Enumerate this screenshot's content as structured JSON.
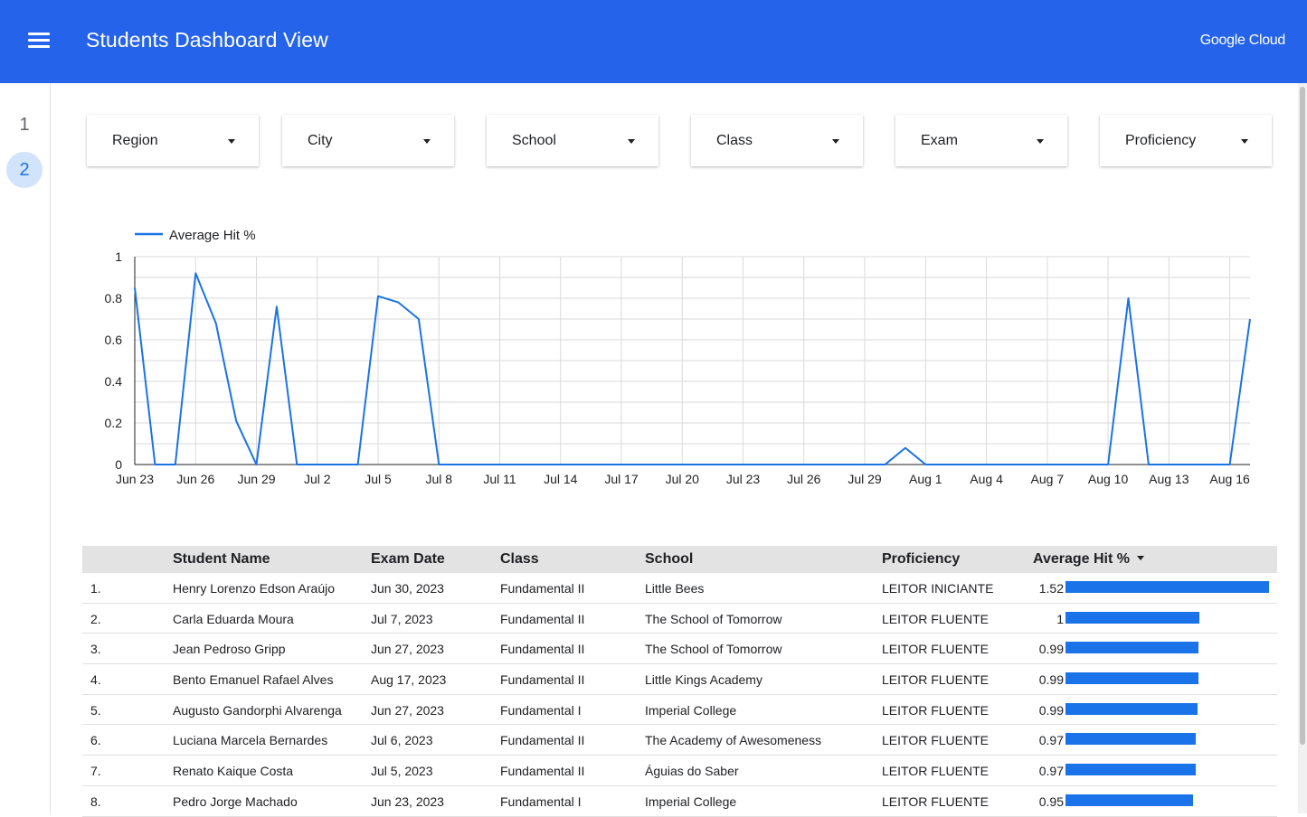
{
  "header": {
    "title": "Students Dashboard View",
    "brand": "Google Cloud",
    "menu_icon": "hamburger-menu-icon",
    "color": "#2563eb"
  },
  "pages": [
    {
      "label": "1",
      "active": false
    },
    {
      "label": "2",
      "active": true
    }
  ],
  "filters": [
    {
      "label": "Region"
    },
    {
      "label": "City"
    },
    {
      "label": "School"
    },
    {
      "label": "Class"
    },
    {
      "label": "Exam"
    },
    {
      "label": "Proficiency"
    }
  ],
  "chart_data": {
    "type": "line",
    "legend": "Average Hit %",
    "legend_position": "top-left",
    "grid": true,
    "series_color": "#1a73e8",
    "ylim": [
      0,
      1
    ],
    "y_ticks": [
      "0",
      "0.2",
      "0.4",
      "0.6",
      "0.8",
      "1"
    ],
    "x_ticks": [
      "Jun 23",
      "Jun 26",
      "Jun 29",
      "Jul 2",
      "Jul 5",
      "Jul 8",
      "Jul 11",
      "Jul 14",
      "Jul 17",
      "Jul 20",
      "Jul 23",
      "Jul 26",
      "Jul 29",
      "Aug 1",
      "Aug 4",
      "Aug 7",
      "Aug 10",
      "Aug 13",
      "Aug 16"
    ],
    "x_start": "2023-06-23",
    "x_end": "2023-08-17",
    "series": [
      {
        "name": "Average Hit %",
        "points": [
          {
            "x": "2023-06-23",
            "y": 0.85
          },
          {
            "x": "2023-06-24",
            "y": 0
          },
          {
            "x": "2023-06-25",
            "y": 0
          },
          {
            "x": "2023-06-26",
            "y": 0.92
          },
          {
            "x": "2023-06-27",
            "y": 0.68
          },
          {
            "x": "2023-06-28",
            "y": 0.21
          },
          {
            "x": "2023-06-29",
            "y": 0
          },
          {
            "x": "2023-06-30",
            "y": 0.76
          },
          {
            "x": "2023-07-01",
            "y": 0
          },
          {
            "x": "2023-07-02",
            "y": 0
          },
          {
            "x": "2023-07-03",
            "y": 0
          },
          {
            "x": "2023-07-04",
            "y": 0
          },
          {
            "x": "2023-07-05",
            "y": 0.81
          },
          {
            "x": "2023-07-06",
            "y": 0.78
          },
          {
            "x": "2023-07-07",
            "y": 0.7
          },
          {
            "x": "2023-07-08",
            "y": 0
          },
          {
            "x": "2023-07-09",
            "y": 0
          },
          {
            "x": "2023-07-10",
            "y": 0
          },
          {
            "x": "2023-07-11",
            "y": 0
          },
          {
            "x": "2023-07-12",
            "y": 0
          },
          {
            "x": "2023-07-13",
            "y": 0
          },
          {
            "x": "2023-07-14",
            "y": 0
          },
          {
            "x": "2023-07-15",
            "y": 0
          },
          {
            "x": "2023-07-16",
            "y": 0
          },
          {
            "x": "2023-07-17",
            "y": 0
          },
          {
            "x": "2023-07-18",
            "y": 0
          },
          {
            "x": "2023-07-19",
            "y": 0
          },
          {
            "x": "2023-07-20",
            "y": 0
          },
          {
            "x": "2023-07-21",
            "y": 0
          },
          {
            "x": "2023-07-22",
            "y": 0
          },
          {
            "x": "2023-07-23",
            "y": 0
          },
          {
            "x": "2023-07-24",
            "y": 0
          },
          {
            "x": "2023-07-25",
            "y": 0
          },
          {
            "x": "2023-07-26",
            "y": 0
          },
          {
            "x": "2023-07-27",
            "y": 0
          },
          {
            "x": "2023-07-28",
            "y": 0
          },
          {
            "x": "2023-07-29",
            "y": 0
          },
          {
            "x": "2023-07-30",
            "y": 0
          },
          {
            "x": "2023-07-31",
            "y": 0.08
          },
          {
            "x": "2023-08-01",
            "y": 0
          },
          {
            "x": "2023-08-02",
            "y": 0
          },
          {
            "x": "2023-08-03",
            "y": 0
          },
          {
            "x": "2023-08-04",
            "y": 0
          },
          {
            "x": "2023-08-05",
            "y": 0
          },
          {
            "x": "2023-08-06",
            "y": 0
          },
          {
            "x": "2023-08-07",
            "y": 0
          },
          {
            "x": "2023-08-08",
            "y": 0
          },
          {
            "x": "2023-08-09",
            "y": 0
          },
          {
            "x": "2023-08-10",
            "y": 0
          },
          {
            "x": "2023-08-11",
            "y": 0.8
          },
          {
            "x": "2023-08-12",
            "y": 0
          },
          {
            "x": "2023-08-13",
            "y": 0
          },
          {
            "x": "2023-08-14",
            "y": 0
          },
          {
            "x": "2023-08-15",
            "y": 0
          },
          {
            "x": "2023-08-16",
            "y": 0
          },
          {
            "x": "2023-08-17",
            "y": 0.7
          }
        ]
      }
    ]
  },
  "table": {
    "columns": {
      "name": "Student Name",
      "date": "Exam Date",
      "cls": "Class",
      "school": "School",
      "prof": "Proficiency",
      "hit": "Average Hit %"
    },
    "sort_icon": "sort-descending-icon",
    "bar_max": 1.52,
    "rows": [
      {
        "idx": "1.",
        "name": "Henry Lorenzo Edson Araújo",
        "date": "Jun 30, 2023",
        "cls": "Fundamental II",
        "school": "Little Bees",
        "prof": "LEITOR INICIANTE",
        "hit": "1.52",
        "hit_value": 1.52
      },
      {
        "idx": "2.",
        "name": "Carla Eduarda Moura",
        "date": "Jul 7, 2023",
        "cls": "Fundamental II",
        "school": "The School of Tomorrow",
        "prof": "LEITOR FLUENTE",
        "hit": "1",
        "hit_value": 1
      },
      {
        "idx": "3.",
        "name": "Jean Pedroso Gripp",
        "date": "Jun 27, 2023",
        "cls": "Fundamental II",
        "school": "The School of Tomorrow",
        "prof": "LEITOR FLUENTE",
        "hit": "0.99",
        "hit_value": 0.99
      },
      {
        "idx": "4.",
        "name": "Bento Emanuel Rafael Alves",
        "date": "Aug 17, 2023",
        "cls": "Fundamental II",
        "school": "Little Kings Academy",
        "prof": "LEITOR FLUENTE",
        "hit": "0.99",
        "hit_value": 0.99
      },
      {
        "idx": "5.",
        "name": "Augusto Gandorphi Alvarenga",
        "date": "Jun 27, 2023",
        "cls": "Fundamental I",
        "school": "Imperial College",
        "prof": "LEITOR FLUENTE",
        "hit": "0.99",
        "hit_value": 0.985
      },
      {
        "idx": "6.",
        "name": "Luciana Marcela Bernardes",
        "date": "Jul 6, 2023",
        "cls": "Fundamental II",
        "school": "The Academy of Awesomeness",
        "prof": "LEITOR FLUENTE",
        "hit": "0.97",
        "hit_value": 0.97
      },
      {
        "idx": "7.",
        "name": "Renato Kaique Costa",
        "date": "Jul 5, 2023",
        "cls": "Fundamental II",
        "school": "Águias do Saber",
        "prof": "LEITOR FLUENTE",
        "hit": "0.97",
        "hit_value": 0.97
      },
      {
        "idx": "8.",
        "name": "Pedro Jorge Machado",
        "date": "Jun 23, 2023",
        "cls": "Fundamental I",
        "school": "Imperial College",
        "prof": "LEITOR FLUENTE",
        "hit": "0.95",
        "hit_value": 0.95
      }
    ]
  }
}
